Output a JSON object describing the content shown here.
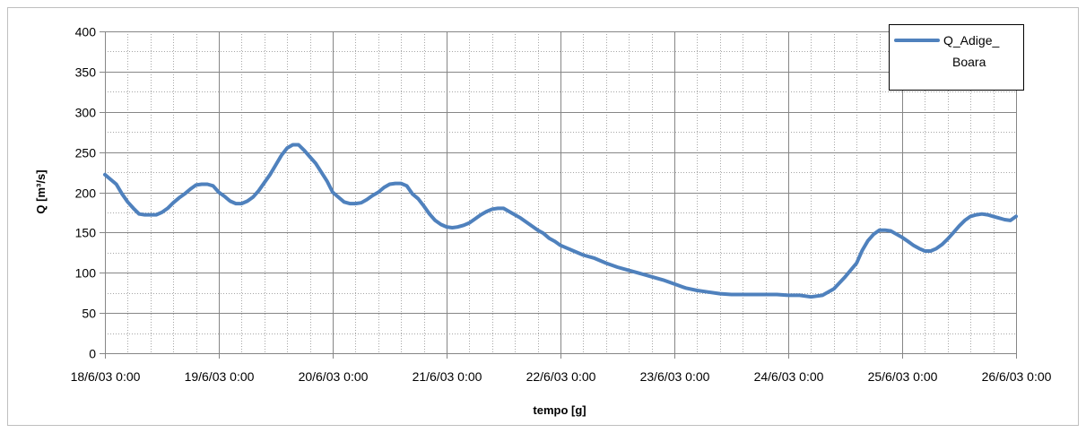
{
  "chart_data": {
    "type": "line",
    "xlabel": "tempo [g]",
    "ylabel": "Q [m³/s]",
    "ylim": [
      0,
      400
    ],
    "yticks": [
      0,
      50,
      100,
      150,
      200,
      250,
      300,
      350,
      400
    ],
    "xlim": [
      0,
      8
    ],
    "xtick_labels": [
      "18/6/03 0:00",
      "19/6/03 0:00",
      "20/6/03 0:00",
      "21/6/03 0:00",
      "22/6/03 0:00",
      "23/6/03 0:00",
      "24/6/03 0:00",
      "25/6/03 0:00",
      "26/6/03 0:00"
    ],
    "grid": true,
    "legend_position": "top-right",
    "series": [
      {
        "name": "Q_Adige_Boara",
        "legend_lines": [
          "Q_Adige_",
          "Boara"
        ],
        "color": "#4F81BD",
        "x": [
          0.0,
          0.05,
          0.1,
          0.15,
          0.2,
          0.25,
          0.3,
          0.35,
          0.4,
          0.45,
          0.5,
          0.55,
          0.6,
          0.65,
          0.7,
          0.75,
          0.8,
          0.85,
          0.9,
          0.95,
          1.0,
          1.05,
          1.1,
          1.15,
          1.2,
          1.25,
          1.3,
          1.35,
          1.4,
          1.45,
          1.5,
          1.55,
          1.6,
          1.65,
          1.7,
          1.75,
          1.8,
          1.85,
          1.9,
          1.95,
          2.0,
          2.05,
          2.1,
          2.15,
          2.2,
          2.25,
          2.3,
          2.35,
          2.4,
          2.45,
          2.5,
          2.55,
          2.6,
          2.65,
          2.7,
          2.75,
          2.8,
          2.85,
          2.9,
          2.95,
          3.0,
          3.05,
          3.1,
          3.15,
          3.2,
          3.25,
          3.3,
          3.35,
          3.4,
          3.45,
          3.5,
          3.55,
          3.6,
          3.65,
          3.7,
          3.75,
          3.8,
          3.85,
          3.9,
          3.95,
          4.0,
          4.1,
          4.2,
          4.3,
          4.4,
          4.5,
          4.6,
          4.7,
          4.8,
          4.9,
          5.0,
          5.1,
          5.2,
          5.3,
          5.4,
          5.5,
          5.6,
          5.7,
          5.8,
          5.9,
          6.0,
          6.1,
          6.2,
          6.3,
          6.4,
          6.5,
          6.6,
          6.65,
          6.7,
          6.75,
          6.8,
          6.85,
          6.9,
          6.95,
          7.0,
          7.05,
          7.1,
          7.15,
          7.2,
          7.25,
          7.3,
          7.35,
          7.4,
          7.45,
          7.5,
          7.55,
          7.6,
          7.65,
          7.7,
          7.75,
          7.8,
          7.85,
          7.9,
          7.95,
          8.0
        ],
        "y": [
          222,
          216,
          210,
          198,
          188,
          180,
          173,
          172,
          172,
          172,
          175,
          180,
          187,
          193,
          198,
          204,
          209,
          210,
          210,
          208,
          200,
          195,
          189,
          186,
          186,
          189,
          194,
          202,
          212,
          222,
          234,
          246,
          255,
          259,
          259,
          252,
          244,
          236,
          225,
          214,
          200,
          194,
          188,
          186,
          186,
          187,
          191,
          196,
          200,
          206,
          210,
          211,
          211,
          208,
          198,
          192,
          183,
          173,
          165,
          160,
          157,
          156,
          157,
          159,
          162,
          167,
          172,
          176,
          179,
          180,
          180,
          176,
          172,
          168,
          163,
          158,
          153,
          149,
          143,
          139,
          134,
          128,
          122,
          118,
          112,
          107,
          103,
          99,
          95,
          91,
          86,
          81,
          78,
          76,
          74,
          73,
          73,
          73,
          73,
          73,
          72,
          72,
          70,
          72,
          80,
          95,
          112,
          128,
          140,
          148,
          153,
          153,
          152,
          148,
          144,
          139,
          134,
          130,
          127,
          127,
          130,
          135,
          142,
          150,
          158,
          165,
          170,
          172,
          173,
          172,
          170,
          168,
          166,
          165,
          170
        ]
      }
    ]
  }
}
